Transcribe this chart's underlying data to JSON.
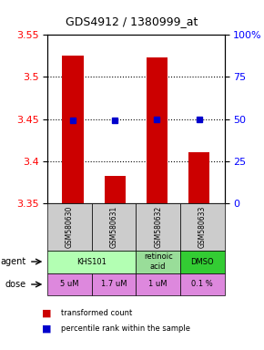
{
  "title": "GDS4912 / 1380999_at",
  "samples": [
    "GSM580630",
    "GSM580631",
    "GSM580632",
    "GSM580633"
  ],
  "bar_values": [
    3.525,
    3.382,
    3.523,
    3.41
  ],
  "bar_base": 3.35,
  "percentile_values": [
    3.448,
    3.448,
    3.449,
    3.449
  ],
  "ylim": [
    3.35,
    3.55
  ],
  "yticks": [
    3.35,
    3.4,
    3.45,
    3.5,
    3.55
  ],
  "y2ticks": [
    0,
    25,
    50,
    75,
    100
  ],
  "y2labels": [
    "0",
    "25",
    "50",
    "75",
    "100%"
  ],
  "bar_color": "#cc0000",
  "percentile_color": "#0000cc",
  "dose_labels": [
    "5 uM",
    "1.7 uM",
    "1 uM",
    "0.1 %"
  ],
  "dose_color": "#dd88dd",
  "sample_bg": "#cccccc",
  "agent_groups": [
    {
      "cols": [
        0,
        1
      ],
      "text": "KHS101",
      "color": "#b3ffb3"
    },
    {
      "cols": [
        2
      ],
      "text": "retinoic\nacid",
      "color": "#99dd99"
    },
    {
      "cols": [
        3
      ],
      "text": "DMSO",
      "color": "#33cc33"
    }
  ]
}
